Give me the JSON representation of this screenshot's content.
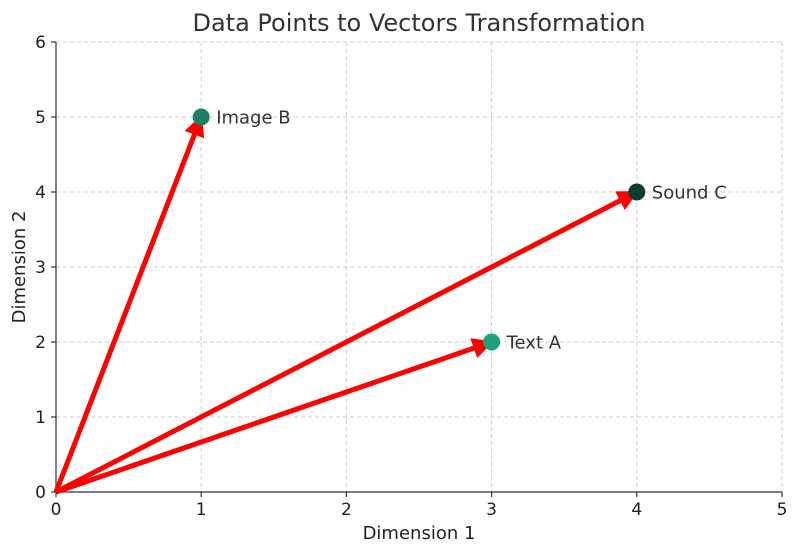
{
  "chart_data": {
    "type": "scatter",
    "title": "Data Points to Vectors Transformation",
    "xlabel": "Dimension 1",
    "ylabel": "Dimension 2",
    "xlim": [
      0,
      5
    ],
    "ylim": [
      0,
      6
    ],
    "xticks": [
      0,
      1,
      2,
      3,
      4,
      5
    ],
    "yticks": [
      0,
      1,
      2,
      3,
      4,
      5,
      6
    ],
    "grid": true,
    "vector_origin": [
      0,
      0
    ],
    "vector_color": "#ff0000",
    "points": [
      {
        "label": "Text A",
        "x": 3,
        "y": 2,
        "color": "#1aa37a"
      },
      {
        "label": "Image B",
        "x": 1,
        "y": 5,
        "color": "#1d7f66"
      },
      {
        "label": "Sound C",
        "x": 4,
        "y": 4,
        "color": "#0e3d2f"
      }
    ]
  }
}
